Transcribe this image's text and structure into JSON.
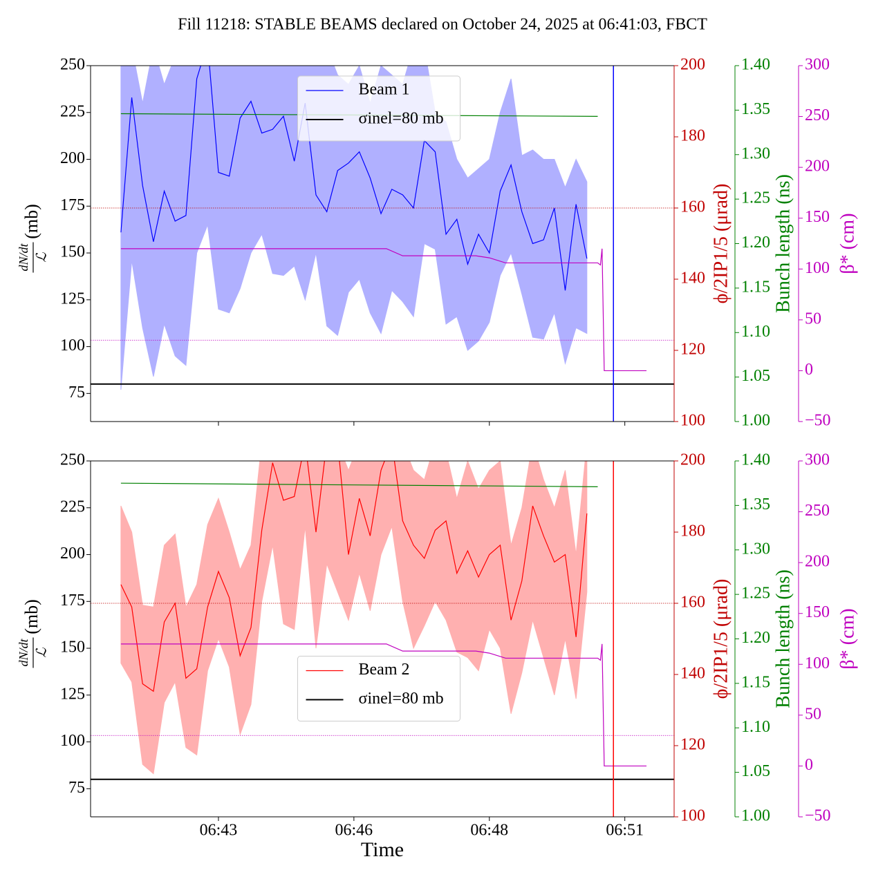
{
  "chart_data": [
    {
      "type": "line",
      "title": "Fill 11218: STABLE BEAMS declared on October 24, 2025 at 06:41:03, FBCT",
      "ylabel": {
        "numerator": "dN/dt",
        "denominator": "ℒ",
        "unit": "(mb)"
      },
      "ylim": [
        60,
        250
      ],
      "yticks": [
        75,
        100,
        125,
        150,
        175,
        200,
        225,
        250
      ],
      "y2lim": [
        100,
        200
      ],
      "y2ticks": [
        100,
        120,
        140,
        160,
        180,
        200
      ],
      "y2label": "ϕ/2IP1/5 (μrad)",
      "y2color": "#c00000",
      "y3lim": [
        1.0,
        1.4
      ],
      "y3ticks": [
        {
          "value": 1.0,
          "label": "1.00"
        },
        1.05,
        {
          "value": 1.1,
          "label": "1.10"
        },
        1.15,
        {
          "value": 1.2,
          "label": "1.20"
        },
        1.25,
        {
          "value": 1.3,
          "label": "1.30"
        },
        1.35,
        {
          "value": 1.4,
          "label": "1.40"
        }
      ],
      "y3label": "Bunch length (ns)",
      "y3color": "#008000",
      "y4lim": [
        -50,
        300
      ],
      "y4ticks": [
        {
          "value": -50,
          "label": "−50"
        },
        0,
        50,
        100,
        150,
        200,
        250,
        300
      ],
      "y4label": "β* (cm)",
      "y4color": "#bf00bf",
      "legend": "upper center",
      "series": [
        {
          "name": "Beam 1",
          "color": "#0000ff",
          "fill_color": "#b0b0ff",
          "axis": "y",
          "x": [
            41.7,
            41.9,
            42.1,
            42.3,
            42.5,
            42.7,
            42.9,
            43.1,
            43.3,
            43.5,
            43.7,
            43.9,
            44.1,
            44.3,
            44.5,
            44.7,
            44.9,
            45.1,
            45.3,
            45.5,
            45.7,
            45.9,
            46.1,
            46.3,
            46.5,
            46.7,
            46.9,
            47.1,
            47.3,
            47.5,
            47.7,
            47.9,
            48.1,
            48.3,
            48.5,
            48.7,
            48.9,
            49.1,
            49.3,
            49.5,
            49.7,
            49.9,
            50.1,
            50.3
          ],
          "values": [
            161,
            233,
            186,
            156,
            183,
            167,
            170,
            243,
            262,
            193,
            191,
            222,
            231,
            214,
            216,
            223,
            199,
            230,
            181,
            172,
            194,
            198,
            204,
            190,
            171,
            184,
            181,
            174,
            210,
            204,
            160,
            168,
            144,
            160,
            150,
            183,
            197,
            172,
            155,
            157,
            174,
            130,
            176,
            147
          ],
          "lower": [
            77,
            146,
            110,
            84,
            112,
            95,
            90,
            150,
            165,
            120,
            118,
            131,
            150,
            160,
            139,
            138,
            143,
            125,
            150,
            111,
            106,
            129,
            136,
            118,
            107,
            130,
            124,
            116,
            155,
            152,
            112,
            116,
            98,
            103,
            113,
            138,
            150,
            128,
            105,
            104,
            118,
            91,
            110,
            107
          ],
          "upper": [
            260,
            260,
            230,
            260,
            240,
            255,
            260,
            260,
            260,
            260,
            260,
            260,
            260,
            260,
            260,
            260,
            260,
            260,
            255,
            260,
            245,
            240,
            250,
            230,
            250,
            245,
            240,
            260,
            260,
            225,
            220,
            200,
            190,
            195,
            200,
            225,
            243,
            202,
            205,
            200,
            200,
            185,
            200,
            188
          ]
        },
        {
          "name": "σinel=80 mb",
          "color": "#000000",
          "style": "hline",
          "axis": "y",
          "values": [
            80
          ]
        },
        {
          "color": "#c00000",
          "style": "dotted-hline",
          "axis": "y2",
          "values": [
            160
          ]
        },
        {
          "color": "#008000",
          "axis": "y3",
          "x": [
            41.7,
            50.5
          ],
          "values": [
            1.346,
            1.343
          ]
        },
        {
          "color": "#bf00bf",
          "axis": "y4",
          "x": [
            41.7,
            46.6,
            46.9,
            48.25,
            48.5,
            48.8,
            50.5,
            50.55,
            50.58,
            50.62,
            51.4
          ],
          "values": [
            120,
            120,
            113,
            113,
            111,
            106,
            106,
            104,
            120,
            0,
            0
          ]
        },
        {
          "color": "#bf00bf",
          "style": "dotted-hline",
          "axis": "y4",
          "values": [
            30
          ]
        },
        {
          "color": "#0000ff",
          "style": "vline",
          "values": [
            50.79
          ]
        }
      ]
    },
    {
      "type": "line",
      "xlabel": "Time",
      "xlim": [
        41.14,
        51.91
      ],
      "xticks": [
        {
          "value": 43.5,
          "label": "06:43"
        },
        {
          "value": 46.0,
          "label": "06:46"
        },
        {
          "value": 48.5,
          "label": "06:48"
        },
        {
          "value": 51.0,
          "label": "06:51"
        }
      ],
      "ylabel": {
        "numerator": "dN/dt",
        "denominator": "ℒ",
        "unit": "(mb)"
      },
      "ylim": [
        60,
        250
      ],
      "yticks": [
        75,
        100,
        125,
        150,
        175,
        200,
        225,
        250
      ],
      "y2lim": [
        100,
        200
      ],
      "y2ticks": [
        100,
        120,
        140,
        160,
        180,
        200
      ],
      "y2label": "ϕ/2IP1/5 (μrad)",
      "y2color": "#c00000",
      "y3lim": [
        1.0,
        1.4
      ],
      "y3ticks": [
        {
          "value": 1.0,
          "label": "1.00"
        },
        1.05,
        {
          "value": 1.1,
          "label": "1.10"
        },
        1.15,
        {
          "value": 1.2,
          "label": "1.20"
        },
        1.25,
        {
          "value": 1.3,
          "label": "1.30"
        },
        1.35,
        {
          "value": 1.4,
          "label": "1.40"
        }
      ],
      "y3label": "Bunch length (ns)",
      "y3color": "#008000",
      "y4lim": [
        -50,
        300
      ],
      "y4ticks": [
        {
          "value": -50,
          "label": "−50"
        },
        0,
        50,
        100,
        150,
        200,
        250,
        300
      ],
      "y4label": "β* (cm)",
      "y4color": "#bf00bf",
      "legend": "center",
      "series": [
        {
          "name": "Beam 2",
          "color": "#ff0000",
          "fill_color": "#ffb0b0",
          "axis": "y",
          "x": [
            41.7,
            41.9,
            42.1,
            42.3,
            42.5,
            42.7,
            42.9,
            43.1,
            43.3,
            43.5,
            43.7,
            43.9,
            44.1,
            44.3,
            44.5,
            44.7,
            44.9,
            45.1,
            45.3,
            45.5,
            45.7,
            45.9,
            46.1,
            46.3,
            46.5,
            46.7,
            46.9,
            47.1,
            47.3,
            47.5,
            47.7,
            47.9,
            48.1,
            48.3,
            48.5,
            48.7,
            48.9,
            49.1,
            49.3,
            49.5,
            49.7,
            49.9,
            50.1,
            50.3
          ],
          "values": [
            184,
            172,
            131,
            127,
            164,
            174,
            134,
            139,
            172,
            191,
            177,
            146,
            161,
            213,
            249,
            229,
            231,
            260,
            212,
            260,
            260,
            200,
            230,
            210,
            245,
            260,
            218,
            205,
            198,
            213,
            218,
            190,
            202,
            188,
            200,
            205,
            165,
            186,
            226,
            210,
            196,
            200,
            156,
            222
          ],
          "lower": [
            142,
            132,
            88,
            83,
            121,
            132,
            97,
            93,
            138,
            155,
            140,
            104,
            120,
            175,
            205,
            163,
            160,
            215,
            150,
            195,
            180,
            165,
            190,
            170,
            200,
            215,
            175,
            150,
            162,
            175,
            165,
            148,
            145,
            138,
            160,
            150,
            115,
            137,
            165,
            145,
            125,
            155,
            123,
            180
          ],
          "upper": [
            226,
            212,
            173,
            172,
            205,
            211,
            172,
            184,
            216,
            230,
            212,
            192,
            205,
            260,
            260,
            260,
            260,
            260,
            260,
            260,
            260,
            245,
            260,
            250,
            260,
            260,
            260,
            245,
            240,
            260,
            255,
            230,
            250,
            235,
            245,
            250,
            205,
            225,
            260,
            240,
            225,
            245,
            200,
            260
          ]
        },
        {
          "name": "σinel=80 mb",
          "color": "#000000",
          "style": "hline",
          "axis": "y",
          "values": [
            80
          ]
        },
        {
          "color": "#c00000",
          "style": "dotted-hline",
          "axis": "y2",
          "values": [
            160
          ]
        },
        {
          "color": "#008000",
          "axis": "y3",
          "x": [
            41.7,
            50.5
          ],
          "values": [
            1.375,
            1.371
          ]
        },
        {
          "color": "#bf00bf",
          "axis": "y4",
          "x": [
            41.7,
            46.6,
            46.9,
            48.25,
            48.5,
            48.8,
            50.5,
            50.55,
            50.58,
            50.62,
            51.4
          ],
          "values": [
            120,
            120,
            113,
            113,
            111,
            106,
            106,
            104,
            120,
            0,
            0
          ]
        },
        {
          "color": "#bf00bf",
          "style": "dotted-hline",
          "axis": "y4",
          "values": [
            30
          ]
        },
        {
          "color": "#ff0000",
          "style": "vline",
          "values": [
            50.79
          ]
        }
      ]
    }
  ]
}
